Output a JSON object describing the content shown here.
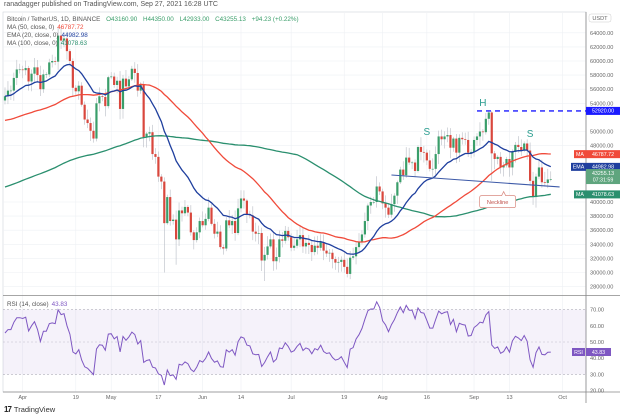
{
  "header": {
    "published": "ranadagger published on TradingView.com, Sep 27, 2021 16:28 UTC"
  },
  "legend": {
    "symbol": "Bitcoin / TetherUS, 1D, BINANCE",
    "open": "O43160.90",
    "high": "H44350.00",
    "low": "L42933.00",
    "close": "C43255.13",
    "change": "+94.23 (+0.22%)",
    "ma50_label": "MA (50, close, 0)",
    "ma50_value": "46787.72",
    "ema20_label": "EMA (20, close, 0)",
    "ema20_value": "44982.98",
    "ma100_label": "MA (100, close, 0)",
    "ma100_value": "41078.63"
  },
  "price_axis": {
    "currency": "USDT",
    "ticks": [
      "64000.00",
      "62000.00",
      "60000.00",
      "58000.00",
      "56000.00",
      "54000.00",
      "50000.00",
      "48000.00",
      "40000.00",
      "38000.00",
      "36000.00",
      "34000.00",
      "32000.00",
      "30000.00",
      "28000.00"
    ],
    "tags": {
      "resistance": "52920.00",
      "ma50_tag": "MA",
      "ma50": "46787.72",
      "ema20_tag": "EMA",
      "ema20": "44982.98",
      "last_price": "43255.13",
      "countdown": "07:31:59",
      "ma100_tag": "MA",
      "ma100": "41078.63"
    }
  },
  "rsi": {
    "label": "RSI (14, close)",
    "value": "43.83",
    "tag": "RSI",
    "ticks": [
      "70.00",
      "60.00",
      "50.00",
      "40.00",
      "30.00",
      "20.00"
    ]
  },
  "time_axis": {
    "ticks": [
      {
        "label": "Apr",
        "day": 6
      },
      {
        "label": "19",
        "day": 24
      },
      {
        "label": "May",
        "day": 36
      },
      {
        "label": "17",
        "day": 52
      },
      {
        "label": "Jun",
        "day": 67
      },
      {
        "label": "14",
        "day": 80
      },
      {
        "label": "Jul",
        "day": 97
      },
      {
        "label": "19",
        "day": 115
      },
      {
        "label": "Aug",
        "day": 128
      },
      {
        "label": "16",
        "day": 143
      },
      {
        "label": "Sep",
        "day": 159
      },
      {
        "label": "13",
        "day": 171
      },
      {
        "label": "Oct",
        "day": 189
      }
    ]
  },
  "annotations": {
    "head": "H",
    "left_shoulder": "S",
    "right_shoulder": "S",
    "neckline": "Neckline"
  },
  "branding": {
    "logo": "TradingView"
  },
  "colors": {
    "up": "#3a9e6a",
    "down": "#d9473d",
    "ema20": "#1f3f9e",
    "ma50": "#f04a3a",
    "ma100": "#2a8f6e",
    "rsi": "#7e57c2",
    "resistance": "#1a1aff",
    "neckline": "#3d5aa8",
    "annot": "#2a9d8f"
  },
  "chart_data": {
    "type": "candlestick",
    "title": "Bitcoin / TetherUS, 1D, BINANCE",
    "start_date": "2021-03-26",
    "units": "thousand USDT",
    "closes": [
      55.0,
      55.8,
      55.8,
      57.6,
      58.8,
      58.8,
      58.7,
      59.0,
      57.1,
      58.2,
      59.1,
      58.0,
      56.0,
      58.1,
      58.1,
      59.8,
      60.0,
      59.9,
      63.6,
      62.9,
      63.2,
      61.4,
      60.0,
      56.2,
      55.7,
      56.5,
      53.8,
      51.7,
      51.2,
      50.1,
      49.0,
      54.0,
      55.0,
      54.9,
      53.6,
      57.7,
      57.8,
      56.6,
      57.2,
      53.2,
      57.5,
      56.4,
      57.4,
      58.9,
      58.3,
      55.8,
      56.7,
      49.2,
      49.7,
      49.9,
      46.8,
      46.4,
      43.6,
      42.9,
      37.0,
      40.7,
      37.3,
      37.5,
      34.7,
      38.8,
      38.4,
      39.3,
      38.5,
      35.7,
      34.6,
      35.7,
      37.3,
      36.7,
      37.6,
      39.2,
      36.9,
      35.5,
      35.8,
      33.6,
      33.4,
      37.4,
      36.7,
      37.3,
      35.6,
      39.1,
      40.5,
      40.2,
      38.3,
      38.1,
      35.8,
      35.5,
      35.6,
      31.7,
      32.5,
      33.7,
      34.7,
      31.6,
      32.2,
      34.7,
      34.5,
      35.9,
      35.0,
      33.5,
      33.8,
      34.7,
      35.3,
      33.7,
      34.2,
      33.9,
      32.9,
      33.8,
      33.5,
      34.3,
      33.1,
      32.7,
      32.8,
      31.9,
      31.4,
      31.5,
      31.8,
      30.8,
      29.8,
      32.1,
      32.3,
      33.6,
      34.3,
      35.4,
      37.3,
      39.5,
      40.0,
      40.0,
      42.2,
      41.5,
      39.8,
      39.2,
      38.2,
      39.7,
      40.9,
      42.8,
      44.6,
      43.8,
      46.3,
      45.6,
      45.6,
      44.4,
      47.8,
      47.1,
      47.0,
      45.9,
      44.7,
      44.7,
      46.8,
      49.3,
      48.9,
      49.3,
      49.5,
      47.7,
      49.0,
      47.0,
      49.1,
      48.9,
      48.8,
      47.0,
      47.1,
      48.8,
      49.3,
      50.0,
      49.9,
      51.8,
      52.7,
      46.9,
      46.1,
      46.4,
      44.9,
      45.2,
      46.1,
      44.9,
      47.1,
      48.1,
      47.8,
      47.3,
      48.3,
      47.3,
      43.0,
      40.7,
      43.6,
      44.9,
      42.8,
      42.7,
      43.2,
      43.25513
    ],
    "last_candle": {
      "open": 43.1609,
      "high": 44.35,
      "low": 42.933,
      "close": 43.25513
    },
    "wick_overrides": [
      {
        "day": 18,
        "high": 64.8
      },
      {
        "day": 19,
        "high": 64.9
      },
      {
        "day": 54,
        "high": 43.5,
        "low": 30.0
      },
      {
        "day": 58,
        "low": 31.1
      },
      {
        "day": 88,
        "low": 28.8
      },
      {
        "day": 116,
        "low": 29.3
      },
      {
        "day": 165,
        "high": 52.92,
        "low": 43.0
      },
      {
        "day": 179,
        "low": 39.6
      }
    ],
    "ma_seed": {
      "ema20": 55.0,
      "ma50": 51.5,
      "ma100": 42.0
    },
    "resistance_level": 52.92,
    "resistance_from_day": 160,
    "neckline": {
      "from": {
        "day": 131,
        "price": 43.83
      },
      "to": {
        "day": 188,
        "price": 42.13
      }
    },
    "labels": {
      "head": {
        "day": 162,
        "price": 54.2
      },
      "left_shoulder": {
        "day": 143,
        "price": 50.1
      },
      "right_shoulder": {
        "day": 178,
        "price": 49.8
      },
      "neckline": {
        "day": 167,
        "price": 40.2
      }
    },
    "ylim": [
      27.5,
      66.5
    ],
    "rsi_ylim": [
      17,
      83
    ],
    "rsi_bands": [
      30,
      70
    ]
  }
}
